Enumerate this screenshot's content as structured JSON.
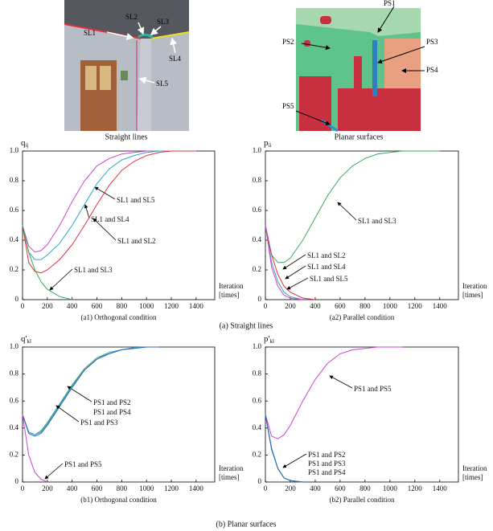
{
  "images": [
    {
      "caption": "Straight lines",
      "labels": [
        "SL1",
        "SL2",
        "SL3",
        "SL4",
        "SL5"
      ]
    },
    {
      "caption": "Planar surfaces",
      "labels": [
        "PS1",
        "PS2",
        "PS3",
        "PS4",
        "PS5"
      ]
    }
  ],
  "sections": [
    "(a) Straight lines",
    "(b) Planar surfaces"
  ],
  "chart_data": [
    {
      "type": "line",
      "ylabel": [
        "q",
        "ij"
      ],
      "xlabel": [
        "Iteration",
        "[times]"
      ],
      "caption": "(a1) Orthogonal condition",
      "xlim": [
        0,
        1550
      ],
      "ylim": [
        0,
        1
      ],
      "xticks": [
        0,
        200,
        400,
        600,
        800,
        1000,
        1200,
        1400
      ],
      "yticks": [
        0,
        {
          "value": 0.2,
          "label": "0.2"
        },
        {
          "value": 0.4,
          "label": "0.4"
        },
        {
          "value": 0.6,
          "label": "0.6"
        },
        {
          "value": 0.8,
          "label": "0.8"
        },
        {
          "value": 1,
          "label": "1.0"
        }
      ],
      "x": [
        0,
        50,
        100,
        150,
        200,
        300,
        400,
        500,
        600,
        700,
        800,
        900,
        1000,
        1100,
        1200,
        1300,
        1400
      ],
      "series": [
        {
          "name": "SL1 and SL5",
          "color": "#cc44cc",
          "values": [
            0.5,
            0.36,
            0.32,
            0.33,
            0.37,
            0.5,
            0.66,
            0.8,
            0.9,
            0.95,
            0.98,
            0.99,
            1,
            1,
            1,
            1,
            1
          ]
        },
        {
          "name": "SL1 and SL4",
          "color": "#2aa7c9",
          "values": [
            0.5,
            0.32,
            0.27,
            0.27,
            0.3,
            0.38,
            0.5,
            0.64,
            0.78,
            0.88,
            0.94,
            0.97,
            0.99,
            1,
            1,
            1,
            1
          ]
        },
        {
          "name": "SL1 and SL2",
          "color": "#e0303f",
          "values": [
            0.5,
            0.25,
            0.19,
            0.18,
            0.2,
            0.27,
            0.37,
            0.5,
            0.64,
            0.77,
            0.87,
            0.93,
            0.97,
            0.99,
            1,
            1,
            1
          ]
        },
        {
          "name": "SL1 and SL3",
          "color": "#3aa65a",
          "values": [
            0.5,
            0.32,
            0.2,
            0.12,
            0.07,
            0.02,
            0,
            null,
            null,
            null,
            null,
            null,
            null,
            null,
            null,
            null,
            null
          ]
        }
      ]
    },
    {
      "type": "line",
      "ylabel": [
        "p",
        "ii"
      ],
      "xlabel": [
        "Iteration",
        "[times]"
      ],
      "caption": "(a2) Parallel condition",
      "xlim": [
        0,
        1550
      ],
      "ylim": [
        0,
        1
      ],
      "xticks": [
        0,
        200,
        400,
        600,
        800,
        1000,
        1200,
        1400
      ],
      "yticks": [
        0,
        {
          "value": 0.2,
          "label": "0.2"
        },
        {
          "value": 0.4,
          "label": "0.4"
        },
        {
          "value": 0.6,
          "label": "0.6"
        },
        {
          "value": 0.8,
          "label": "0.8"
        },
        {
          "value": 1,
          "label": "1.0"
        }
      ],
      "x": [
        0,
        50,
        100,
        150,
        200,
        300,
        400,
        500,
        600,
        700,
        800,
        900,
        1000,
        1100,
        1200,
        1300,
        1400
      ],
      "series": [
        {
          "name": "SL1 and SL3",
          "color": "#3aa65a",
          "values": [
            0.5,
            0.3,
            0.25,
            0.25,
            0.28,
            0.4,
            0.55,
            0.7,
            0.82,
            0.9,
            0.95,
            0.98,
            0.99,
            1,
            1,
            1,
            1
          ]
        },
        {
          "name": "SL1 and SL2",
          "color": "#e0303f",
          "values": [
            0.5,
            0.3,
            0.17,
            0.09,
            0.05,
            0.01,
            0,
            null,
            null,
            null,
            null,
            null,
            null,
            null,
            null,
            null,
            null
          ]
        },
        {
          "name": "SL1 and SL4",
          "color": "#2aa7c9",
          "values": [
            0.5,
            0.25,
            0.12,
            0.05,
            0.02,
            0,
            null,
            null,
            null,
            null,
            null,
            null,
            null,
            null,
            null,
            null,
            null
          ]
        },
        {
          "name": "SL1 and SL5",
          "color": "#cc44cc",
          "values": [
            0.5,
            0.22,
            0.09,
            0.03,
            0.01,
            0,
            null,
            null,
            null,
            null,
            null,
            null,
            null,
            null,
            null,
            null,
            null
          ]
        }
      ]
    },
    {
      "type": "line",
      "ylabel": [
        "q'",
        "kl"
      ],
      "xlabel": [
        "Iteration",
        "[times]"
      ],
      "caption": "(b1) Orthogonal condition",
      "xlim": [
        0,
        1550
      ],
      "ylim": [
        0,
        1
      ],
      "xticks": [
        0,
        200,
        400,
        600,
        800,
        1000,
        1200,
        1400
      ],
      "yticks": [
        0,
        {
          "value": 0.2,
          "label": "0.2"
        },
        {
          "value": 0.4,
          "label": "0.4"
        },
        {
          "value": 0.6,
          "label": "0.6"
        },
        {
          "value": 0.8,
          "label": "0.8"
        },
        {
          "value": 1,
          "label": "1.0"
        }
      ],
      "x": [
        0,
        50,
        100,
        150,
        200,
        300,
        400,
        500,
        600,
        700,
        800,
        900,
        1000,
        1100,
        1200,
        1300,
        1400
      ],
      "series": [
        {
          "name": "PS1 and PS2",
          "color": "#3aa65a",
          "values": [
            0.5,
            0.37,
            0.35,
            0.38,
            0.44,
            0.58,
            0.72,
            0.84,
            0.92,
            0.96,
            0.98,
            0.995,
            1,
            1,
            null,
            null,
            null
          ]
        },
        {
          "name": "PS1 and PS4",
          "color": "#2aa7c9",
          "values": [
            0.5,
            0.37,
            0.35,
            0.37,
            0.43,
            0.57,
            0.71,
            0.83,
            0.91,
            0.96,
            0.98,
            0.995,
            1,
            1,
            null,
            null,
            null
          ]
        },
        {
          "name": "PS1 and PS3",
          "color": "#3060c0",
          "values": [
            0.5,
            0.36,
            0.34,
            0.36,
            0.42,
            0.56,
            0.7,
            0.83,
            0.91,
            0.95,
            0.98,
            0.99,
            1,
            1,
            null,
            null,
            null
          ]
        },
        {
          "name": "PS1 and PS5",
          "color": "#cc44cc",
          "values": [
            0.5,
            0.2,
            0.07,
            0.02,
            0,
            null,
            null,
            null,
            null,
            null,
            null,
            null,
            null,
            null,
            null,
            null,
            null
          ]
        }
      ]
    },
    {
      "type": "line",
      "ylabel": [
        "p'",
        "kl"
      ],
      "xlabel": [
        "Iteration",
        "[times]"
      ],
      "caption": "(b2) Parallel condition",
      "xlim": [
        0,
        1550
      ],
      "ylim": [
        0,
        1
      ],
      "xticks": [
        0,
        200,
        400,
        600,
        800,
        1000,
        1200,
        1400
      ],
      "yticks": [
        0,
        {
          "value": 0.2,
          "label": "0.2"
        },
        {
          "value": 0.4,
          "label": "0.4"
        },
        {
          "value": 0.6,
          "label": "0.6"
        },
        {
          "value": 0.8,
          "label": "0.8"
        },
        {
          "value": 1,
          "label": "1.0"
        }
      ],
      "x": [
        0,
        50,
        100,
        150,
        200,
        300,
        400,
        500,
        600,
        700,
        800,
        900,
        1000,
        1100,
        1200,
        1300,
        1400
      ],
      "series": [
        {
          "name": "PS1 and PS5",
          "color": "#cc44cc",
          "values": [
            0.5,
            0.34,
            0.32,
            0.35,
            0.42,
            0.6,
            0.76,
            0.88,
            0.95,
            0.98,
            0.99,
            1,
            1,
            1,
            null,
            null,
            null
          ]
        },
        {
          "name": "PS1 and PS2",
          "color": "#3aa65a",
          "values": [
            0.5,
            0.25,
            0.1,
            0.03,
            0.01,
            0,
            null,
            null,
            null,
            null,
            null,
            null,
            null,
            null,
            null,
            null,
            null
          ]
        },
        {
          "name": "PS1 and PS3",
          "color": "#2aa7c9",
          "values": [
            0.5,
            0.25,
            0.1,
            0.03,
            0.01,
            0,
            null,
            null,
            null,
            null,
            null,
            null,
            null,
            null,
            null,
            null,
            null
          ]
        },
        {
          "name": "PS1 and PS4",
          "color": "#3060c0",
          "values": [
            0.5,
            0.24,
            0.1,
            0.03,
            0.01,
            0,
            null,
            null,
            null,
            null,
            null,
            null,
            null,
            null,
            null,
            null,
            null
          ]
        }
      ]
    }
  ]
}
